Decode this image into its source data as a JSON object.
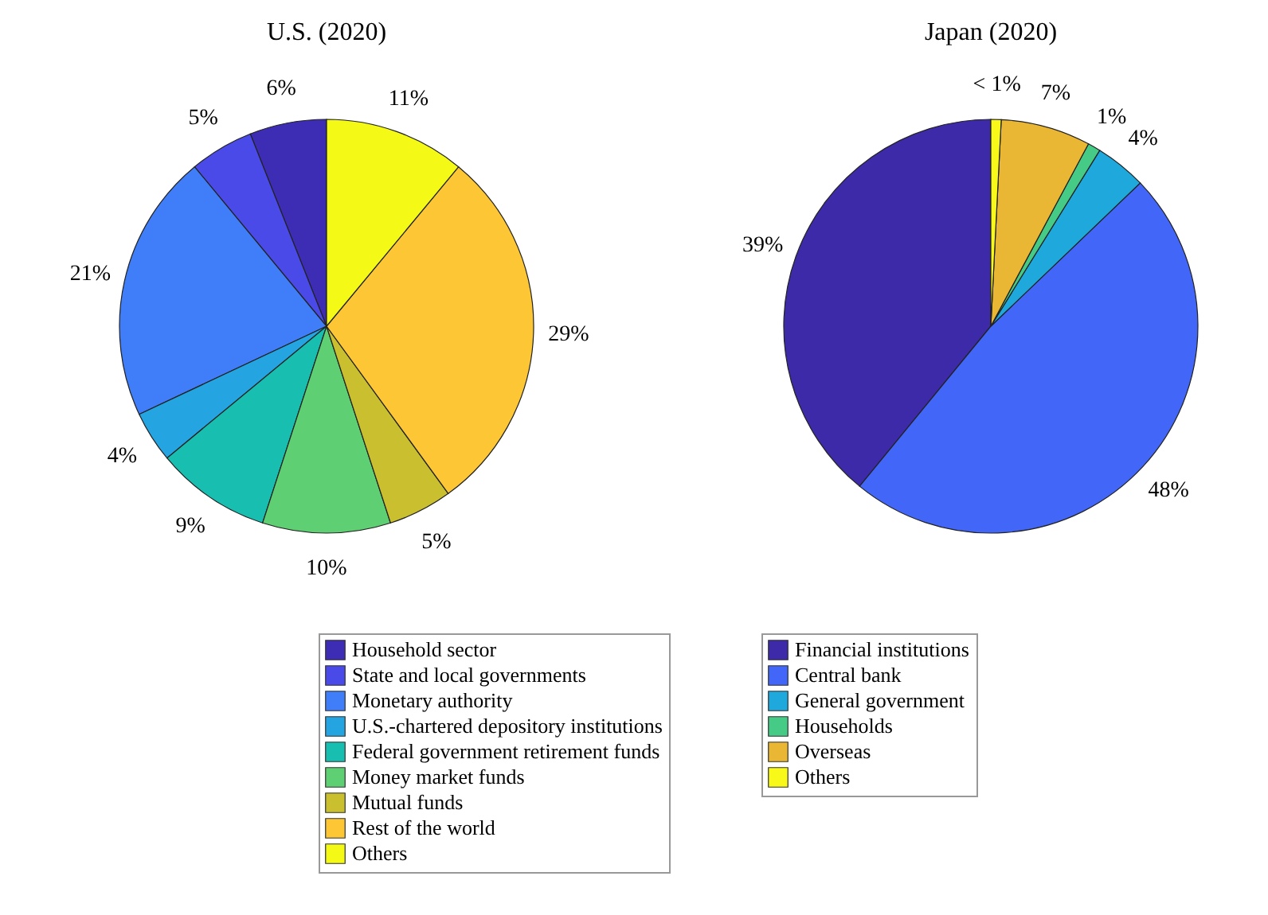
{
  "chart_data": [
    {
      "type": "pie",
      "title": "U.S. (2020)",
      "legend": "bottom",
      "categories": [
        "Household sector",
        "State and local governments",
        "Monetary authority",
        "U.S.-chartered depository institutions",
        "Federal government retirement funds",
        "Money market funds",
        "Mutual funds",
        "Rest of the world",
        "Others"
      ],
      "values": [
        6,
        5,
        21,
        4,
        9,
        10,
        5,
        29,
        11
      ],
      "value_labels": [
        "6%",
        "5%",
        "21%",
        "4%",
        "9%",
        "10%",
        "5%",
        "29%",
        "11%"
      ],
      "colors": [
        "#3d2db5",
        "#4a4ae8",
        "#3f7ef8",
        "#24a4e0",
        "#18bfb0",
        "#5ecf72",
        "#cabf2e",
        "#fdc634",
        "#f5f916"
      ]
    },
    {
      "type": "pie",
      "title": "Japan (2020)",
      "legend": "bottom",
      "categories": [
        "Financial institutions",
        "Central bank",
        "General government",
        "Households",
        "Overseas",
        "Others"
      ],
      "values": [
        39,
        48,
        4,
        1,
        7,
        0.8
      ],
      "value_labels": [
        "39%",
        "48%",
        "4%",
        "1%",
        "7%",
        "< 1%"
      ],
      "colors": [
        "#3d2aa8",
        "#4267f8",
        "#1fa8dc",
        "#45cb85",
        "#e9b733",
        "#f8f918"
      ]
    }
  ]
}
